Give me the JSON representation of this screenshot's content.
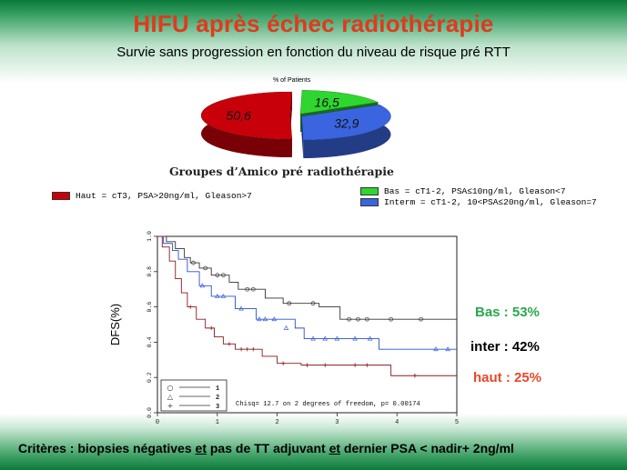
{
  "slide": {
    "title": "HIFU après échec radiothérapie",
    "subtitle": "Survie sans progression en fonction du niveau de risque pré RTT"
  },
  "colors": {
    "title_red": "#e03a1e",
    "haut_red": "#c8000a",
    "bas_green": "#2fd62f",
    "inter_blue": "#3a64e0",
    "band_green": "#0a7a3a",
    "bas_label": "#2aa84a",
    "haut_label": "#e8472a"
  },
  "legend": {
    "haut": "Haut = cT3, PSA>20ng/ml, Gleason>7",
    "bas": "Bas = cT1-2, PSA≤10ng/ml, Gleason<7",
    "interm": "Interm = cT1-2, 10<PSA≤20ng/ml, Gleason=7"
  },
  "results": {
    "bas": "Bas : 53%",
    "inter": "inter : 42%",
    "haut": "haut : 25%"
  },
  "footer": {
    "part1": "Critères : biopsies négatives ",
    "et1": "et",
    "part2": " pas de TT adjuvant ",
    "et2": "et",
    "part3": " dernier PSA < nadir+ 2ng/ml"
  },
  "chart_data": [
    {
      "type": "pie",
      "title": "% of Patients",
      "caption": "Groupes d’Amico pré radiothérapie",
      "slices": [
        {
          "label": "50,6",
          "value": 50.6,
          "color": "#c8000a"
        },
        {
          "label": "16,5",
          "value": 16.5,
          "color": "#2fd62f"
        },
        {
          "label": "32,9",
          "value": 32.9,
          "color": "#3a64e0"
        }
      ]
    },
    {
      "type": "line",
      "ylabel": "DFS(%)",
      "xlim": [
        0,
        5
      ],
      "ylim": [
        0,
        1.0
      ],
      "x_ticks": [
        "0",
        "1",
        "2",
        "3",
        "4",
        "5"
      ],
      "y_ticks": [
        "0.0",
        "0.2",
        "0.4",
        "0.6",
        "0.8",
        "1.0"
      ],
      "annotation": "Chisq= 12.7  on 2 degrees of freedom, p= 0.00174",
      "series": [
        {
          "name": "1",
          "color": "#333333",
          "steps": [
            [
              0,
              1.0
            ],
            [
              0.15,
              0.97
            ],
            [
              0.3,
              0.93
            ],
            [
              0.45,
              0.88
            ],
            [
              0.55,
              0.85
            ],
            [
              0.7,
              0.82
            ],
            [
              0.9,
              0.78
            ],
            [
              1.2,
              0.74
            ],
            [
              1.35,
              0.7
            ],
            [
              1.8,
              0.65
            ],
            [
              2.1,
              0.62
            ],
            [
              2.7,
              0.6
            ],
            [
              3.05,
              0.53
            ],
            [
              5.0,
              0.53
            ]
          ],
          "censors": [
            [
              0.6,
              0.85
            ],
            [
              0.8,
              0.82
            ],
            [
              1.0,
              0.78
            ],
            [
              1.1,
              0.78
            ],
            [
              1.5,
              0.7
            ],
            [
              1.6,
              0.7
            ],
            [
              2.2,
              0.62
            ],
            [
              2.6,
              0.62
            ],
            [
              3.2,
              0.53
            ],
            [
              3.35,
              0.53
            ],
            [
              3.5,
              0.53
            ],
            [
              3.9,
              0.53
            ],
            [
              4.4,
              0.53
            ]
          ]
        },
        {
          "name": "2",
          "color": "#333333",
          "steps": [
            [
              0,
              1.0
            ],
            [
              0.1,
              0.96
            ],
            [
              0.25,
              0.92
            ],
            [
              0.35,
              0.87
            ],
            [
              0.5,
              0.8
            ],
            [
              0.7,
              0.72
            ],
            [
              0.9,
              0.66
            ],
            [
              1.3,
              0.59
            ],
            [
              1.65,
              0.53
            ],
            [
              2.3,
              0.48
            ],
            [
              2.45,
              0.42
            ],
            [
              3.7,
              0.36
            ],
            [
              4.7,
              0.36
            ],
            [
              5.0,
              0.36
            ]
          ],
          "censors": [
            [
              0.75,
              0.72
            ],
            [
              1.0,
              0.66
            ],
            [
              1.1,
              0.66
            ],
            [
              1.4,
              0.59
            ],
            [
              1.7,
              0.53
            ],
            [
              1.8,
              0.53
            ],
            [
              1.95,
              0.53
            ],
            [
              2.15,
              0.48
            ],
            [
              2.6,
              0.42
            ],
            [
              2.8,
              0.42
            ],
            [
              3.0,
              0.42
            ],
            [
              3.3,
              0.42
            ],
            [
              3.55,
              0.42
            ],
            [
              4.65,
              0.36
            ],
            [
              4.85,
              0.36
            ]
          ]
        },
        {
          "name": "3",
          "color": "#333333",
          "steps": [
            [
              0,
              1.0
            ],
            [
              0.08,
              0.94
            ],
            [
              0.2,
              0.86
            ],
            [
              0.3,
              0.76
            ],
            [
              0.4,
              0.68
            ],
            [
              0.5,
              0.6
            ],
            [
              0.65,
              0.53
            ],
            [
              0.8,
              0.48
            ],
            [
              0.95,
              0.43
            ],
            [
              1.1,
              0.39
            ],
            [
              1.3,
              0.36
            ],
            [
              1.75,
              0.32
            ],
            [
              2.0,
              0.28
            ],
            [
              2.4,
              0.27
            ],
            [
              3.1,
              0.27
            ],
            [
              3.9,
              0.21
            ],
            [
              5.0,
              0.21
            ]
          ],
          "censors": [
            [
              0.55,
              0.6
            ],
            [
              0.9,
              0.48
            ],
            [
              1.2,
              0.39
            ],
            [
              1.4,
              0.36
            ],
            [
              1.5,
              0.36
            ],
            [
              1.6,
              0.36
            ],
            [
              2.1,
              0.28
            ],
            [
              2.5,
              0.27
            ],
            [
              2.8,
              0.27
            ],
            [
              3.3,
              0.27
            ],
            [
              3.5,
              0.27
            ],
            [
              4.3,
              0.21
            ]
          ]
        }
      ],
      "legend_entries": [
        {
          "symbol": "○",
          "label": "1"
        },
        {
          "symbol": "△",
          "label": "2"
        },
        {
          "symbol": "+",
          "label": "3"
        }
      ]
    }
  ]
}
